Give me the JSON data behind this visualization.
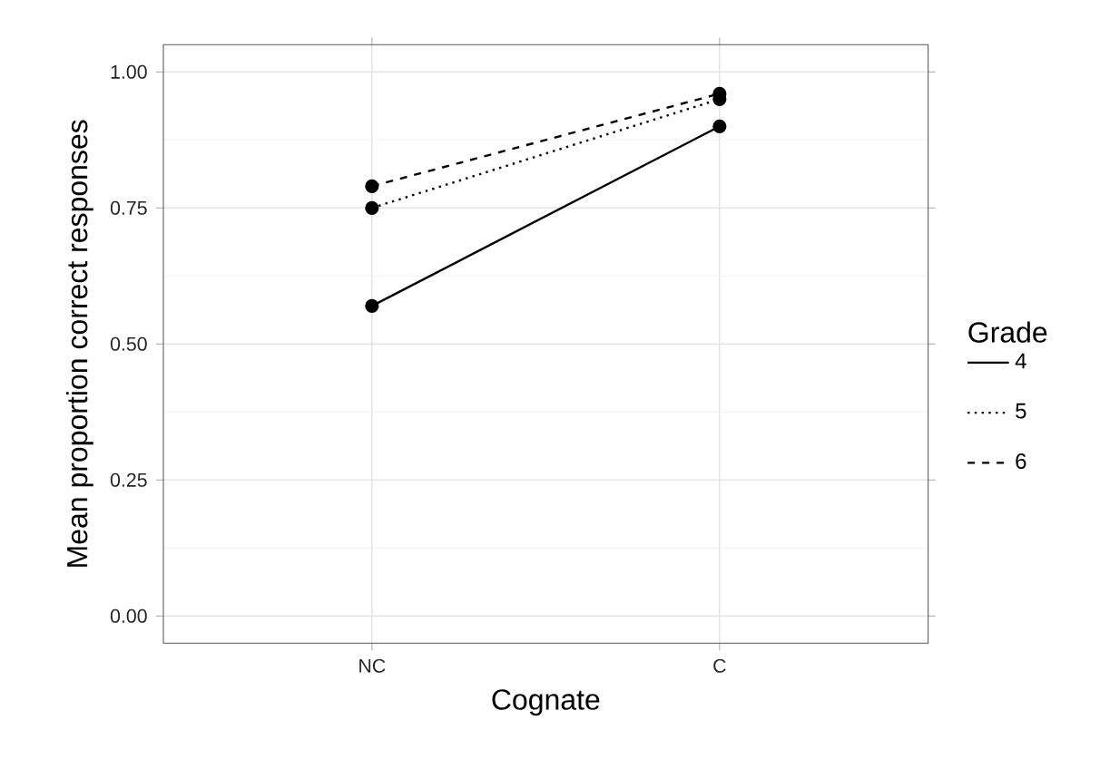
{
  "chart_data": {
    "type": "line",
    "xlabel": "Cognate",
    "ylabel": "Mean proportion correct responses",
    "legend_title": "Grade",
    "categories": [
      "NC",
      "C"
    ],
    "ylim": [
      -0.05,
      1.05
    ],
    "yticks": [
      {
        "value": 0,
        "label": "0.00"
      },
      {
        "value": 0.25,
        "label": "0.25"
      },
      {
        "value": 0.5,
        "label": "0.50"
      },
      {
        "value": 0.75,
        "label": "0.75"
      },
      {
        "value": 1,
        "label": "1.00"
      }
    ],
    "grid": true,
    "legend": "right",
    "marker": "circle",
    "series": [
      {
        "name": "4",
        "color": "#000000",
        "line_style": "solid",
        "values": [
          0.57,
          0.9
        ]
      },
      {
        "name": "5",
        "color": "#000000",
        "line_style": "dotted",
        "values": [
          0.75,
          0.95
        ]
      },
      {
        "name": "6",
        "color": "#000000",
        "line_style": "dashed",
        "values": [
          0.79,
          0.96
        ]
      }
    ]
  }
}
